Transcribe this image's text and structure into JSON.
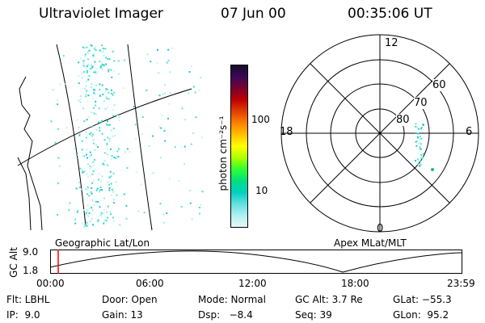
{
  "header": {
    "instrument": "Ultraviolet Imager",
    "date": "07 Jun 00",
    "time": "00:35:06 UT"
  },
  "geo_panel": {
    "label": "Geographic Lat/Lon"
  },
  "polar_panel": {
    "label": "Apex MLat/MLT",
    "mlt_labels": {
      "top": "12",
      "right": "6",
      "bottom": "0",
      "left": "18"
    },
    "lat_labels": [
      "60",
      "70",
      "80"
    ]
  },
  "colorbar": {
    "unit_label": "photon cm⁻²s⁻¹",
    "tick_labels": [
      "100",
      "10"
    ],
    "colors": [
      "#1a0a2e",
      "#3a0a55",
      "#7a0030",
      "#c00000",
      "#e04000",
      "#ff8000",
      "#ffc000",
      "#ffff00",
      "#b0ff00",
      "#30ff30",
      "#00e080",
      "#00d0c0",
      "#60e0e0",
      "#b0f0f0",
      "#e8f8f8"
    ]
  },
  "altitude_plot": {
    "y_label": "GC Alt",
    "y_ticks": [
      "9.0",
      "1.8"
    ],
    "x_ticks": [
      "00:00",
      "06:00",
      "12:00",
      "18:00",
      "23:59"
    ],
    "cursor_color": "#ff0000"
  },
  "footer": {
    "row1": {
      "flt": "Flt: LBHL",
      "door": "Door: Open",
      "mode": "Mode: Normal",
      "gcalt": "GC Alt: 3.7 Re",
      "glat": "GLat: −55.3"
    },
    "row2": {
      "ip": "IP:  9.0",
      "gain": "Gain: 13",
      "dsp": "Dsp:   −8.4",
      "seq": "Seq: 39",
      "glon": "GLon:  95.2"
    }
  }
}
